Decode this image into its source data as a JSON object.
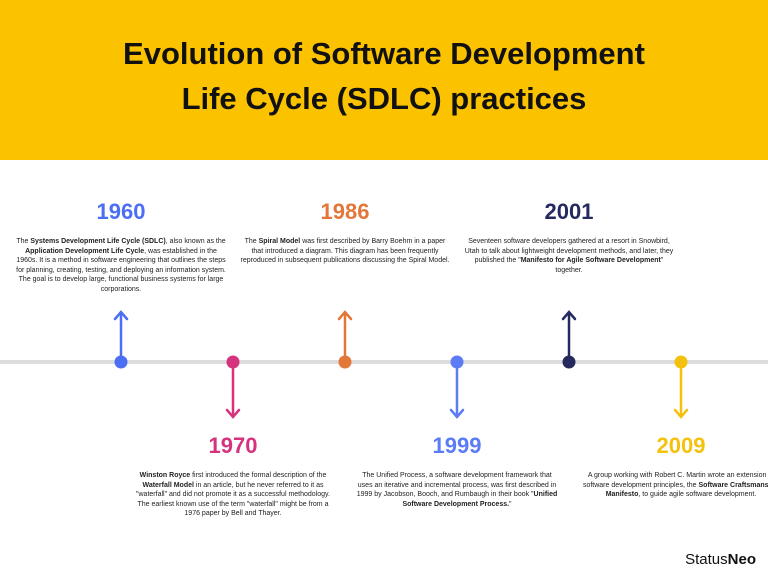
{
  "header": {
    "title_lines": [
      "Evolution of Software Development",
      "Life Cycle (SDLC) practices"
    ]
  },
  "events": [
    {
      "year": "1960",
      "color": "#4b6ef5",
      "description": [
        {
          "text": "The "
        },
        {
          "text": "Systems Development Life Cycle (SDLC)",
          "bold": true
        },
        {
          "text": ", also known as the "
        },
        {
          "text": "Application Development Life Cycle",
          "bold": true
        },
        {
          "text": ", was established in the 1960s. It is a method in software engineering that outlines the steps for planning, creating, testing, and deploying an information system. The goal is to develop large, functional business systems for large corporations."
        }
      ]
    },
    {
      "year": "1970",
      "color": "#d6337f",
      "description": [
        {
          "text": "Winston Royce",
          "bold": true
        },
        {
          "text": " first introduced the formal description of the "
        },
        {
          "text": "Waterfall Model",
          "bold": true
        },
        {
          "text": " in an article, but he never referred to it as \"waterfall\" and did not promote it as a successful methodology. The earliest known use of the term \"waterfall\" might be from a 1976 paper by Bell and Thayer."
        }
      ]
    },
    {
      "year": "1986",
      "color": "#e3773a",
      "description": [
        {
          "text": "The "
        },
        {
          "text": "Spiral Model",
          "bold": true
        },
        {
          "text": " was first described by Barry Boehm in a paper that introduced a diagram. This diagram has been frequently reproduced in subsequent publications discussing the Spiral Model."
        }
      ]
    },
    {
      "year": "1999",
      "color": "#5b7cf5",
      "description": [
        {
          "text": "The Unified Process, a software development framework that uses an iterative and incremental process, was first described in 1999 by Jacobson, Booch, and Rumbaugh in their book \""
        },
        {
          "text": "Unified Software Development Process.",
          "bold": true
        },
        {
          "text": "\""
        }
      ]
    },
    {
      "year": "2001",
      "color": "#252a5e",
      "description": [
        {
          "text": "Seventeen software developers gathered at a resort in Snowbird, Utah to talk about lightweight development methods, and later, they published the \""
        },
        {
          "text": "Manifesto for Agile Software Development",
          "bold": true
        },
        {
          "text": "\" together."
        }
      ]
    },
    {
      "year": "2009",
      "color": "#f4c20d",
      "description": [
        {
          "text": "A group working with Robert C. Martin wrote an extension of software development principles, the "
        },
        {
          "text": "Software Craftsmanship Manifesto",
          "bold": true
        },
        {
          "text": ", to guide agile software development."
        }
      ]
    }
  ],
  "brand": [
    {
      "text": "Status"
    },
    {
      "text": "Neo",
      "bold": true
    }
  ]
}
